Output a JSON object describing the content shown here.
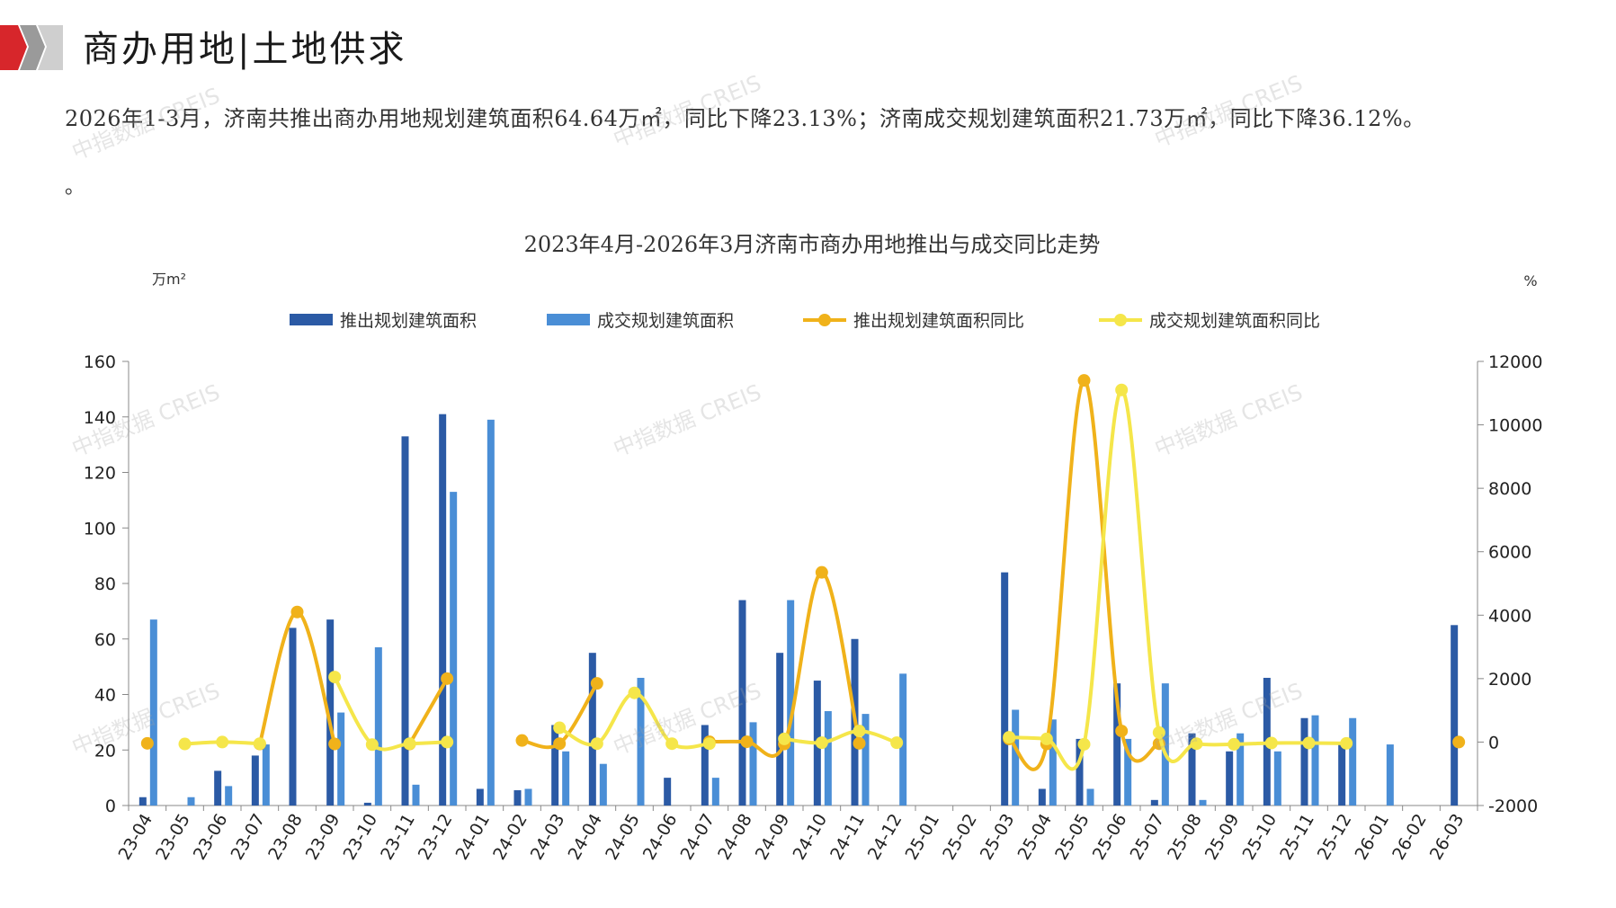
{
  "header": {
    "title": "商办用地|土地供求",
    "colors": {
      "red": "#d7262b",
      "gray": "#9a9a9a",
      "light": "#cfcfcf"
    }
  },
  "summary": {
    "text": "2026年1-3月，济南共推出商办用地规划建筑面积64.64万㎡，同比下降23.13%；济南成交规划建筑面积21.73万㎡，同比下降36.12%。",
    "trailing": "。"
  },
  "watermark_text": "中指数据 CREIS",
  "chart_data": {
    "type": "bar",
    "title": "2023年4月-2026年3月济南市商办用地推出与成交同比走势",
    "ylabel_left": "万m²",
    "ylabel_right": "%",
    "ylim_left": [
      0,
      160
    ],
    "yticks_left": [
      0,
      20,
      40,
      60,
      80,
      100,
      120,
      140,
      160
    ],
    "ylim_right": [
      -2000,
      12000
    ],
    "yticks_right": [
      -2000,
      0,
      2000,
      4000,
      6000,
      8000,
      10000,
      12000
    ],
    "legend_position": "top",
    "categories": [
      "23-04",
      "23-05",
      "23-06",
      "23-07",
      "23-08",
      "23-09",
      "23-10",
      "23-11",
      "23-12",
      "24-01",
      "24-02",
      "24-03",
      "24-04",
      "24-05",
      "24-06",
      "24-07",
      "24-08",
      "24-09",
      "24-10",
      "24-11",
      "24-12",
      "25-01",
      "25-02",
      "25-03",
      "25-04",
      "25-05",
      "25-06",
      "25-07",
      "25-08",
      "25-09",
      "25-10",
      "25-11",
      "25-12",
      "26-01",
      "26-02",
      "26-03"
    ],
    "series": [
      {
        "name": "推出规划建筑面积",
        "kind": "bar",
        "axis": "left",
        "color": "#2b5aa5",
        "values": [
          3,
          0,
          12.5,
          18,
          64,
          67,
          1,
          133,
          141,
          6,
          5.5,
          29,
          55,
          0,
          10,
          29,
          74,
          55,
          45,
          60,
          0,
          0,
          0,
          84,
          6,
          24,
          44,
          2,
          26,
          19.5,
          46,
          31.5,
          22,
          0,
          0,
          65
        ]
      },
      {
        "name": "成交规划建筑面积",
        "kind": "bar",
        "axis": "left",
        "color": "#4a8ed6",
        "values": [
          67,
          3,
          7,
          22,
          0,
          33.5,
          57,
          7.5,
          113,
          139,
          6,
          19.5,
          15,
          46,
          0,
          10,
          30,
          74,
          34,
          33,
          47.5,
          0,
          0,
          34.5,
          31,
          6,
          24,
          44,
          2,
          26,
          19.5,
          32.5,
          31.5,
          22,
          0,
          0
        ]
      },
      {
        "name": "推出规划建筑面积同比",
        "kind": "line",
        "axis": "right",
        "color": "#f0b21a",
        "values": [
          -40,
          null,
          null,
          -60,
          4100,
          -60,
          null,
          -60,
          2000,
          null,
          50,
          -50,
          1850,
          null,
          null,
          10,
          10,
          -60,
          5350,
          -40,
          null,
          null,
          null,
          100,
          -60,
          11400,
          350,
          -50,
          null,
          null,
          null,
          null,
          null,
          null,
          null,
          0
        ]
      },
      {
        "name": "成交规划建筑面积同比",
        "kind": "line",
        "axis": "right",
        "color": "#f5e64a",
        "values": [
          null,
          -60,
          0,
          -50,
          null,
          2050,
          -80,
          -50,
          0,
          null,
          null,
          450,
          -50,
          1550,
          -50,
          -50,
          null,
          100,
          -20,
          350,
          -20,
          null,
          null,
          150,
          100,
          -70,
          11100,
          300,
          -50,
          -70,
          -30,
          -30,
          -40,
          null,
          null,
          null
        ]
      }
    ]
  }
}
